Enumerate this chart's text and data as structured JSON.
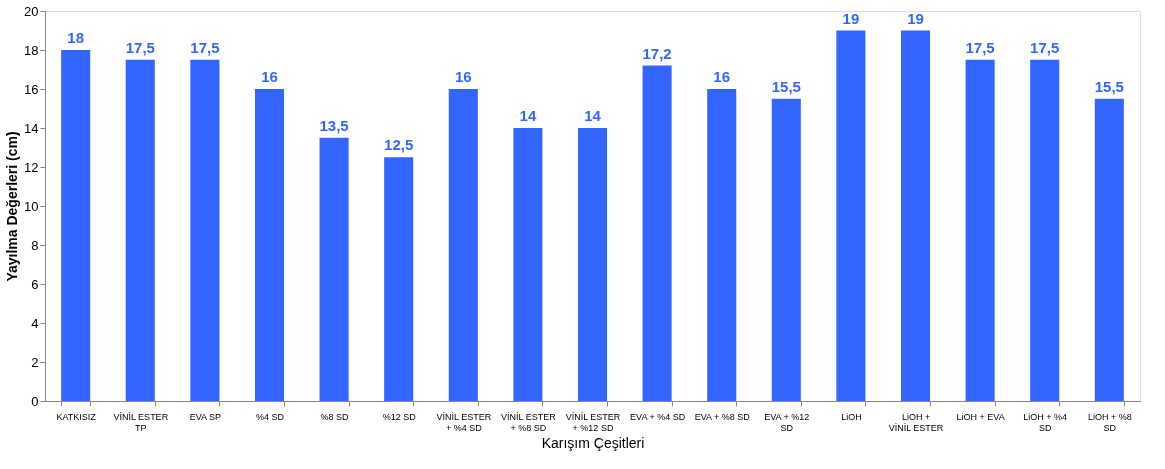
{
  "chart_data": {
    "type": "bar",
    "xlabel": "Karışım Çeşitleri",
    "ylabel": "Yayılma Değerleri (cm)",
    "categories": [
      "KATKISIZ",
      "VİNİL ESTER TP",
      "EVA SP",
      "%4 SD",
      "%8 SD",
      "%12 SD",
      "VİNİL ESTER + %4 SD",
      "VİNİL ESTER + %8 SD",
      "VİNİL ESTER + %12 SD",
      "EVA + %4 SD",
      "EVA + %8 SD",
      "EVA + %12 SD",
      "LiOH",
      "LiOH + VİNİL ESTER",
      "LiOH + EVA",
      "LiOH + %4 SD",
      "LiOH + %8 SD"
    ],
    "values": [
      18,
      17.5,
      17.5,
      16,
      13.5,
      12.5,
      16,
      14,
      14,
      17.2,
      16,
      15.5,
      19,
      19,
      17.5,
      17.5,
      15.5
    ],
    "value_labels": [
      "18",
      "17,5",
      "17,5",
      "16",
      "13,5",
      "12,5",
      "16",
      "14",
      "14",
      "17,2",
      "16",
      "15,5",
      "19",
      "19",
      "17,5",
      "17,5",
      "15,5"
    ],
    "color": "#3366ff",
    "ylim": [
      0,
      20
    ],
    "yticks": [
      0,
      2,
      4,
      6,
      8,
      10,
      12,
      14,
      16,
      18,
      20
    ],
    "grid": false,
    "legend": false
  }
}
